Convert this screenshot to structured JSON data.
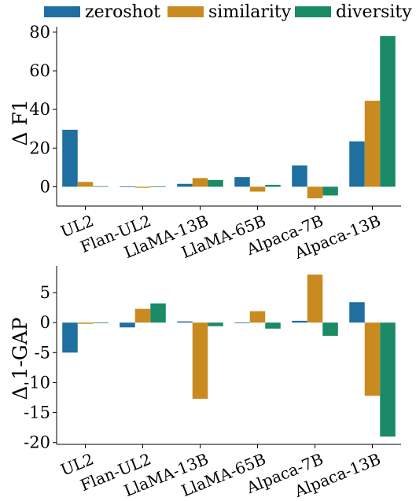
{
  "legend": {
    "items": [
      {
        "label": "zeroshot",
        "color": "#1f6fa0"
      },
      {
        "label": "similarity",
        "color": "#c98b20"
      },
      {
        "label": "diversity",
        "color": "#1b8a66"
      }
    ]
  },
  "chart_data": [
    {
      "type": "bar",
      "ylabel": "Δ F1",
      "categories": [
        "UL2",
        "Flan-UL2",
        "LlaMA-13B",
        "LlaMA-65B",
        "Alpaca-7B",
        "Alpaca-13B"
      ],
      "ylim": [
        -10,
        82
      ],
      "yticks": [
        0,
        20,
        40,
        60,
        80
      ],
      "ytick_labels": [
        "0",
        "20",
        "40",
        "60",
        "80"
      ],
      "series": [
        {
          "name": "zeroshot",
          "values": [
            29.5,
            0.2,
            1.5,
            5.0,
            11.0,
            23.5
          ]
        },
        {
          "name": "similarity",
          "values": [
            2.5,
            -0.5,
            4.5,
            -2.5,
            -6.0,
            44.5
          ]
        },
        {
          "name": "diversity",
          "values": [
            0.3,
            0.2,
            3.5,
            1.0,
            -4.5,
            78.0
          ]
        }
      ],
      "grid": false
    },
    {
      "type": "bar",
      "ylabel": "Δ 1-GAP",
      "categories": [
        "UL2",
        "Flan-UL2",
        "LlaMA-13B",
        "LlaMA-65B",
        "Alpaca-7B",
        "Alpaca-13B"
      ],
      "ylim": [
        -20.3,
        9.2
      ],
      "yticks": [
        5,
        0,
        -5,
        -10,
        -15,
        -20
      ],
      "ytick_labels": [
        "5",
        "0",
        "-5",
        "-10",
        "-15",
        "-20"
      ],
      "series": [
        {
          "name": "zeroshot",
          "values": [
            -5.0,
            -0.8,
            0.2,
            0.0,
            0.3,
            3.4
          ]
        },
        {
          "name": "similarity",
          "values": [
            -0.2,
            2.3,
            -12.7,
            1.9,
            8.0,
            -12.2
          ]
        },
        {
          "name": "diversity",
          "values": [
            0.0,
            3.2,
            -0.6,
            -1.0,
            -2.2,
            -19.0
          ]
        }
      ],
      "grid": false
    }
  ]
}
